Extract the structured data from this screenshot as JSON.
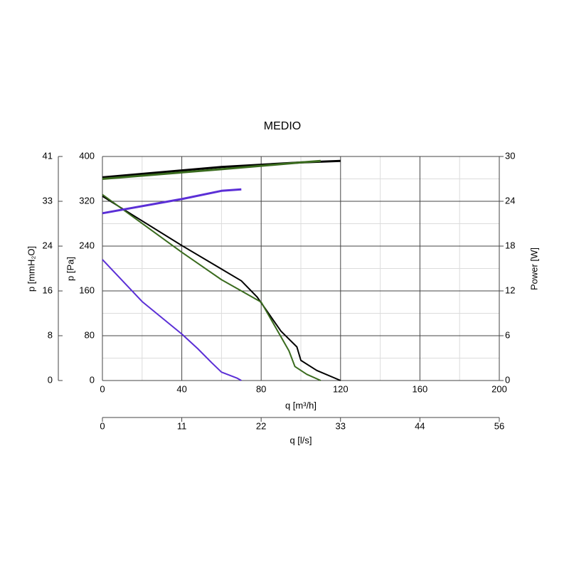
{
  "chart_data": {
    "type": "line",
    "title": "MEDIO",
    "xlabel": "q [m³/h]",
    "ylabel": "p [Pa]",
    "y2label": "Power [W]",
    "xlim": [
      0,
      200
    ],
    "xticks": [
      0,
      40,
      80,
      120,
      160,
      200
    ],
    "minor_xticks": [
      20,
      60,
      100,
      140,
      180
    ],
    "ylim": [
      0,
      400
    ],
    "yticks": [
      0,
      80,
      160,
      240,
      320,
      400
    ],
    "minor_yticks": [
      40,
      120,
      200,
      280,
      360
    ],
    "y2lim": [
      0,
      30
    ],
    "y2ticks": [
      0,
      6,
      12,
      18,
      24,
      30
    ],
    "grid": true,
    "y3": {
      "label": "p [mmH₂O]",
      "lim": [
        0,
        40.79
      ],
      "ticks": [
        0,
        {
          "value": 8.16,
          "label": "8"
        },
        {
          "value": 16.31,
          "label": "16"
        },
        {
          "value": 24.47,
          "label": "24"
        },
        {
          "value": 32.63,
          "label": "33"
        },
        {
          "value": 40.79,
          "label": "41"
        }
      ]
    },
    "x2": {
      "label": "q [l/s]",
      "lim": [
        0,
        55.56
      ],
      "ticks": [
        0,
        {
          "value": 11.11,
          "label": "11"
        },
        {
          "value": 22.22,
          "label": "22"
        },
        {
          "value": 33.33,
          "label": "33"
        },
        {
          "value": 44.44,
          "label": "44"
        },
        {
          "value": 55.56,
          "label": "56"
        }
      ]
    },
    "series": [
      {
        "color": "#000000",
        "width": 2,
        "x": [
          0,
          40,
          60,
          70,
          78,
          90,
          98,
          100,
          108,
          120
        ],
        "values": [
          329,
          241,
          199,
          178,
          149,
          88,
          60,
          36,
          18,
          0
        ]
      },
      {
        "color": "#3a6b1e",
        "width": 2,
        "x": [
          0,
          40,
          60,
          80,
          94,
          97,
          103,
          110
        ],
        "values": [
          332,
          229,
          180,
          140,
          53,
          25,
          11,
          0
        ]
      },
      {
        "color": "#5b2fd6",
        "width": 2,
        "x": [
          0,
          20,
          40,
          48,
          55,
          60,
          68,
          70
        ],
        "values": [
          216,
          141,
          83,
          57,
          32,
          15,
          4,
          0
        ]
      },
      {
        "color": "#000000",
        "width": 3,
        "axis": "y2",
        "x": [
          0,
          60,
          100,
          120
        ],
        "values": [
          27.2,
          28.6,
          29.2,
          29.4
        ]
      },
      {
        "color": "#3a6b1e",
        "width": 3,
        "axis": "y2",
        "x": [
          0,
          60,
          100,
          110
        ],
        "values": [
          27.0,
          28.3,
          29.2,
          29.4
        ]
      },
      {
        "color": "#5b2fd6",
        "width": 3,
        "axis": "y2",
        "x": [
          0,
          40,
          60,
          70
        ],
        "values": [
          22.4,
          24.3,
          25.4,
          25.6
        ]
      }
    ]
  }
}
